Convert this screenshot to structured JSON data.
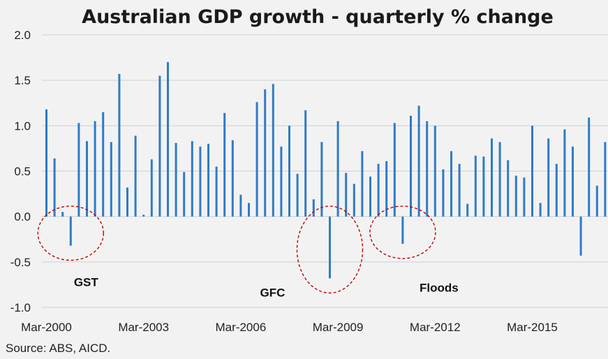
{
  "chart_data": {
    "type": "bar",
    "title": "Australian GDP growth - quarterly % change",
    "xlabel": "",
    "ylabel": "",
    "ylim": [
      -1.0,
      2.0
    ],
    "yticks": [
      "2.0",
      "1.5",
      "1.0",
      "0.5",
      "0.0",
      "-0.5",
      "-1.0"
    ],
    "grid": true,
    "x_tick_labels": [
      "Mar-2000",
      "Mar-2003",
      "Mar-2006",
      "Mar-2009",
      "Mar-2012",
      "Mar-2015"
    ],
    "x_tick_positions": [
      0,
      12,
      24,
      36,
      48,
      60
    ],
    "start_label": "Mar-2000",
    "values": [
      1.18,
      0.64,
      0.05,
      -0.32,
      1.03,
      0.83,
      1.05,
      1.15,
      0.82,
      1.57,
      0.32,
      0.89,
      0.02,
      0.63,
      1.55,
      1.7,
      0.81,
      0.49,
      0.83,
      0.77,
      0.8,
      0.55,
      1.14,
      0.84,
      0.24,
      0.15,
      1.26,
      1.4,
      1.46,
      0.77,
      1.0,
      0.47,
      1.17,
      0.19,
      0.82,
      -0.68,
      1.05,
      0.48,
      0.36,
      0.72,
      0.44,
      0.58,
      0.61,
      1.03,
      -0.3,
      1.11,
      1.22,
      1.05,
      1.0,
      0.52,
      0.72,
      0.58,
      0.14,
      0.67,
      0.66,
      0.86,
      0.82,
      0.62,
      0.45,
      0.43,
      1.0,
      0.15,
      0.86,
      0.58,
      0.96,
      0.77,
      -0.43,
      1.09,
      0.34,
      0.82
    ],
    "annotations": [
      {
        "label": "GST",
        "index": 3
      },
      {
        "label": "GFC",
        "index": 35
      },
      {
        "label": "Floods",
        "index": 44
      }
    ]
  },
  "source": "Source: ABS, AICD."
}
